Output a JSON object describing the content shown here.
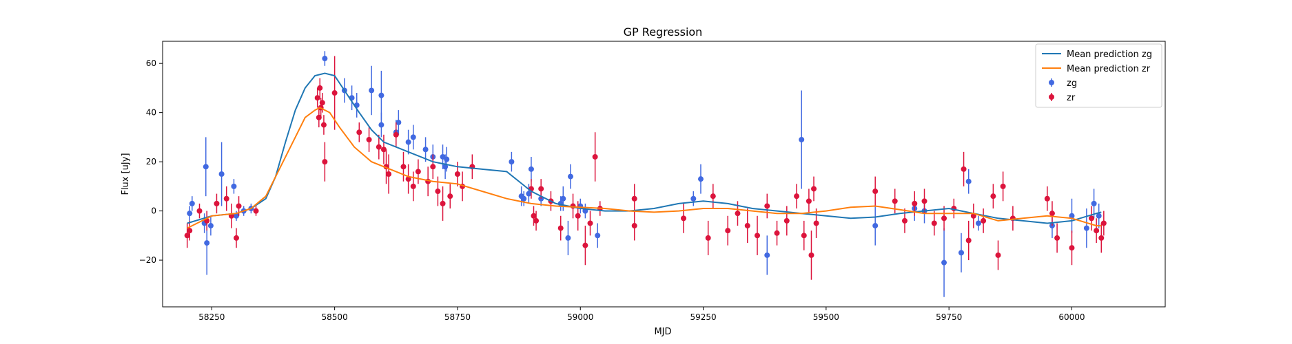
{
  "chart_data": {
    "type": "scatter",
    "title": "GP Regression",
    "xlabel": "MJD",
    "ylabel": "Flux [uJy]",
    "xlim": [
      58150,
      60190
    ],
    "ylim": [
      -39,
      69
    ],
    "xticks": [
      58250,
      58500,
      58750,
      59000,
      59250,
      59500,
      59750,
      60000
    ],
    "yticks": [
      -20,
      0,
      20,
      40,
      60
    ],
    "grid": false,
    "legend_position": "top-right",
    "colors": {
      "zg_line": "#1f77b4",
      "zr_line": "#ff7f0e",
      "zg_points": "#4169e1",
      "zr_points": "#dc143c"
    },
    "legend": [
      {
        "label": "Mean prediction zg",
        "kind": "line",
        "color": "#1f77b4"
      },
      {
        "label": "Mean prediction zr",
        "kind": "line",
        "color": "#ff7f0e"
      },
      {
        "label": "zg",
        "kind": "errorbar",
        "color": "#4169e1"
      },
      {
        "label": "zr",
        "kind": "errorbar",
        "color": "#dc143c"
      }
    ],
    "series": [
      {
        "name": "Mean prediction zg",
        "kind": "line",
        "color": "#1f77b4",
        "points": [
          [
            58200,
            -5
          ],
          [
            58250,
            -2
          ],
          [
            58300,
            -1
          ],
          [
            58330,
            1
          ],
          [
            58360,
            5
          ],
          [
            58380,
            14
          ],
          [
            58400,
            28
          ],
          [
            58420,
            41
          ],
          [
            58440,
            50
          ],
          [
            58460,
            55
          ],
          [
            58480,
            56
          ],
          [
            58500,
            55
          ],
          [
            58520,
            49
          ],
          [
            58550,
            40
          ],
          [
            58575,
            33
          ],
          [
            58600,
            28
          ],
          [
            58650,
            24
          ],
          [
            58700,
            20
          ],
          [
            58750,
            18
          ],
          [
            58800,
            17
          ],
          [
            58850,
            16
          ],
          [
            58900,
            8
          ],
          [
            58950,
            3
          ],
          [
            59000,
            1
          ],
          [
            59050,
            0
          ],
          [
            59100,
            0
          ],
          [
            59150,
            1
          ],
          [
            59200,
            3
          ],
          [
            59250,
            4
          ],
          [
            59300,
            3
          ],
          [
            59350,
            1
          ],
          [
            59400,
            0
          ],
          [
            59450,
            -1
          ],
          [
            59500,
            -2
          ],
          [
            59550,
            -3
          ],
          [
            59600,
            -2.5
          ],
          [
            59650,
            -1
          ],
          [
            59700,
            0
          ],
          [
            59750,
            1
          ],
          [
            59800,
            -1
          ],
          [
            59850,
            -3
          ],
          [
            59900,
            -4
          ],
          [
            59950,
            -5
          ],
          [
            60000,
            -4
          ],
          [
            60050,
            -1
          ],
          [
            60060,
            -0.5
          ]
        ]
      },
      {
        "name": "Mean prediction zr",
        "kind": "line",
        "color": "#ff7f0e",
        "points": [
          [
            58200,
            -7
          ],
          [
            58250,
            -2
          ],
          [
            58300,
            -1
          ],
          [
            58330,
            1
          ],
          [
            58360,
            6
          ],
          [
            58390,
            18
          ],
          [
            58420,
            30
          ],
          [
            58440,
            38
          ],
          [
            58460,
            41
          ],
          [
            58470,
            42
          ],
          [
            58490,
            40
          ],
          [
            58510,
            34
          ],
          [
            58540,
            26
          ],
          [
            58575,
            20
          ],
          [
            58600,
            18
          ],
          [
            58650,
            14
          ],
          [
            58700,
            12
          ],
          [
            58750,
            11
          ],
          [
            58800,
            8
          ],
          [
            58850,
            5
          ],
          [
            58900,
            3
          ],
          [
            58950,
            2
          ],
          [
            59000,
            1.5
          ],
          [
            59050,
            1
          ],
          [
            59100,
            0
          ],
          [
            59150,
            -0.5
          ],
          [
            59200,
            0
          ],
          [
            59250,
            1
          ],
          [
            59300,
            1
          ],
          [
            59350,
            0
          ],
          [
            59400,
            -1
          ],
          [
            59450,
            -1
          ],
          [
            59500,
            0
          ],
          [
            59550,
            1.5
          ],
          [
            59600,
            2
          ],
          [
            59650,
            0.5
          ],
          [
            59700,
            -1
          ],
          [
            59750,
            -1
          ],
          [
            59800,
            -1
          ],
          [
            59850,
            -4
          ],
          [
            59900,
            -3
          ],
          [
            59950,
            -2
          ],
          [
            60000,
            -3
          ],
          [
            60050,
            -6
          ],
          [
            60060,
            -6
          ]
        ]
      },
      {
        "name": "zg",
        "kind": "errorbar",
        "color": "#4169e1",
        "points": [
          [
            58205,
            -1,
            3
          ],
          [
            58210,
            3,
            3
          ],
          [
            58235,
            -5,
            4
          ],
          [
            58238,
            18,
            12
          ],
          [
            58240,
            -13,
            13
          ],
          [
            58248,
            -6,
            4
          ],
          [
            58270,
            15,
            13
          ],
          [
            58295,
            10,
            3
          ],
          [
            58300,
            -2,
            2
          ],
          [
            58315,
            0,
            2
          ],
          [
            58330,
            1,
            2
          ],
          [
            58480,
            62,
            3
          ],
          [
            58520,
            49,
            5
          ],
          [
            58535,
            46,
            5
          ],
          [
            58545,
            43,
            5
          ],
          [
            58575,
            49,
            10
          ],
          [
            58595,
            47,
            10
          ],
          [
            58595,
            35,
            5
          ],
          [
            58625,
            32,
            5
          ],
          [
            58630,
            36,
            5
          ],
          [
            58650,
            28,
            5
          ],
          [
            58660,
            30,
            5
          ],
          [
            58685,
            25,
            5
          ],
          [
            58700,
            22,
            5
          ],
          [
            58720,
            22,
            5
          ],
          [
            58725,
            18,
            5
          ],
          [
            58728,
            21,
            5
          ],
          [
            58860,
            20,
            4
          ],
          [
            58880,
            6,
            4
          ],
          [
            58885,
            5,
            3
          ],
          [
            58895,
            7,
            4
          ],
          [
            58900,
            17,
            5
          ],
          [
            58920,
            5,
            3
          ],
          [
            58960,
            3,
            3
          ],
          [
            58965,
            5,
            5
          ],
          [
            58975,
            -11,
            7
          ],
          [
            58980,
            14,
            5
          ],
          [
            59000,
            2,
            3
          ],
          [
            59010,
            0,
            3
          ],
          [
            59035,
            -10,
            5
          ],
          [
            59230,
            5,
            3
          ],
          [
            59245,
            13,
            6
          ],
          [
            59380,
            -18,
            8
          ],
          [
            59450,
            29,
            20
          ],
          [
            59600,
            -6,
            8
          ],
          [
            59680,
            1,
            5
          ],
          [
            59700,
            0,
            5
          ],
          [
            59740,
            -21,
            14
          ],
          [
            59775,
            -17,
            8
          ],
          [
            59790,
            12,
            5
          ],
          [
            59810,
            -5,
            3
          ],
          [
            59960,
            -6,
            5
          ],
          [
            60000,
            -2,
            7
          ],
          [
            60030,
            -7,
            8
          ],
          [
            60045,
            3,
            6
          ],
          [
            60055,
            -2,
            5
          ]
        ]
      },
      {
        "name": "zr",
        "kind": "errorbar",
        "color": "#dc143c",
        "points": [
          [
            58200,
            -10,
            5
          ],
          [
            58205,
            -8,
            4
          ],
          [
            58225,
            0,
            3
          ],
          [
            58240,
            -4,
            4
          ],
          [
            58260,
            3,
            4
          ],
          [
            58280,
            5,
            5
          ],
          [
            58290,
            -2,
            5
          ],
          [
            58300,
            -11,
            4
          ],
          [
            58305,
            2,
            4
          ],
          [
            58340,
            0,
            2
          ],
          [
            58465,
            46,
            4
          ],
          [
            58468,
            38,
            4
          ],
          [
            58470,
            50,
            4
          ],
          [
            58472,
            42,
            4
          ],
          [
            58475,
            44,
            4
          ],
          [
            58478,
            35,
            4
          ],
          [
            58480,
            20,
            8
          ],
          [
            58500,
            48,
            15
          ],
          [
            58550,
            32,
            4
          ],
          [
            58570,
            29,
            5
          ],
          [
            58590,
            26,
            5
          ],
          [
            58600,
            25,
            6
          ],
          [
            58605,
            18,
            7
          ],
          [
            58610,
            15,
            8
          ],
          [
            58625,
            31,
            5
          ],
          [
            58640,
            18,
            6
          ],
          [
            58650,
            13,
            6
          ],
          [
            58660,
            10,
            6
          ],
          [
            58670,
            16,
            5
          ],
          [
            58690,
            12,
            6
          ],
          [
            58700,
            18,
            5
          ],
          [
            58710,
            8,
            6
          ],
          [
            58720,
            3,
            7
          ],
          [
            58735,
            6,
            5
          ],
          [
            58750,
            15,
            5
          ],
          [
            58760,
            10,
            6
          ],
          [
            58780,
            18,
            5
          ],
          [
            58900,
            9,
            4
          ],
          [
            58905,
            -2,
            4
          ],
          [
            58910,
            -4,
            4
          ],
          [
            58920,
            9,
            4
          ],
          [
            58940,
            4,
            4
          ],
          [
            58960,
            -7,
            5
          ],
          [
            58985,
            2,
            5
          ],
          [
            58995,
            -2,
            6
          ],
          [
            59010,
            -14,
            8
          ],
          [
            59020,
            -5,
            5
          ],
          [
            59030,
            22,
            10
          ],
          [
            59040,
            1,
            3
          ],
          [
            59110,
            -6,
            6
          ],
          [
            59110,
            5,
            6
          ],
          [
            59210,
            -3,
            6
          ],
          [
            59260,
            -11,
            7
          ],
          [
            59270,
            6,
            5
          ],
          [
            59300,
            -8,
            6
          ],
          [
            59320,
            -1,
            5
          ],
          [
            59340,
            -6,
            7
          ],
          [
            59360,
            -10,
            8
          ],
          [
            59380,
            2,
            5
          ],
          [
            59400,
            -9,
            5
          ],
          [
            59420,
            -4,
            6
          ],
          [
            59440,
            6,
            5
          ],
          [
            59455,
            -10,
            6
          ],
          [
            59465,
            4,
            5
          ],
          [
            59470,
            -18,
            10
          ],
          [
            59475,
            9,
            5
          ],
          [
            59480,
            -5,
            6
          ],
          [
            59600,
            8,
            6
          ],
          [
            59640,
            4,
            5
          ],
          [
            59660,
            -4,
            5
          ],
          [
            59680,
            3,
            5
          ],
          [
            59700,
            4,
            5
          ],
          [
            59720,
            -5,
            5
          ],
          [
            59740,
            -3,
            5
          ],
          [
            59760,
            1,
            4
          ],
          [
            59780,
            17,
            7
          ],
          [
            59790,
            -12,
            8
          ],
          [
            59800,
            -2,
            5
          ],
          [
            59820,
            -4,
            5
          ],
          [
            59840,
            6,
            5
          ],
          [
            59850,
            -18,
            6
          ],
          [
            59860,
            10,
            6
          ],
          [
            59880,
            -3,
            5
          ],
          [
            59950,
            5,
            5
          ],
          [
            59960,
            -1,
            5
          ],
          [
            59970,
            -11,
            6
          ],
          [
            60000,
            -15,
            7
          ],
          [
            60040,
            -3,
            5
          ],
          [
            60050,
            -8,
            5
          ],
          [
            60060,
            -11,
            6
          ],
          [
            60065,
            -5,
            5
          ]
        ]
      }
    ]
  }
}
